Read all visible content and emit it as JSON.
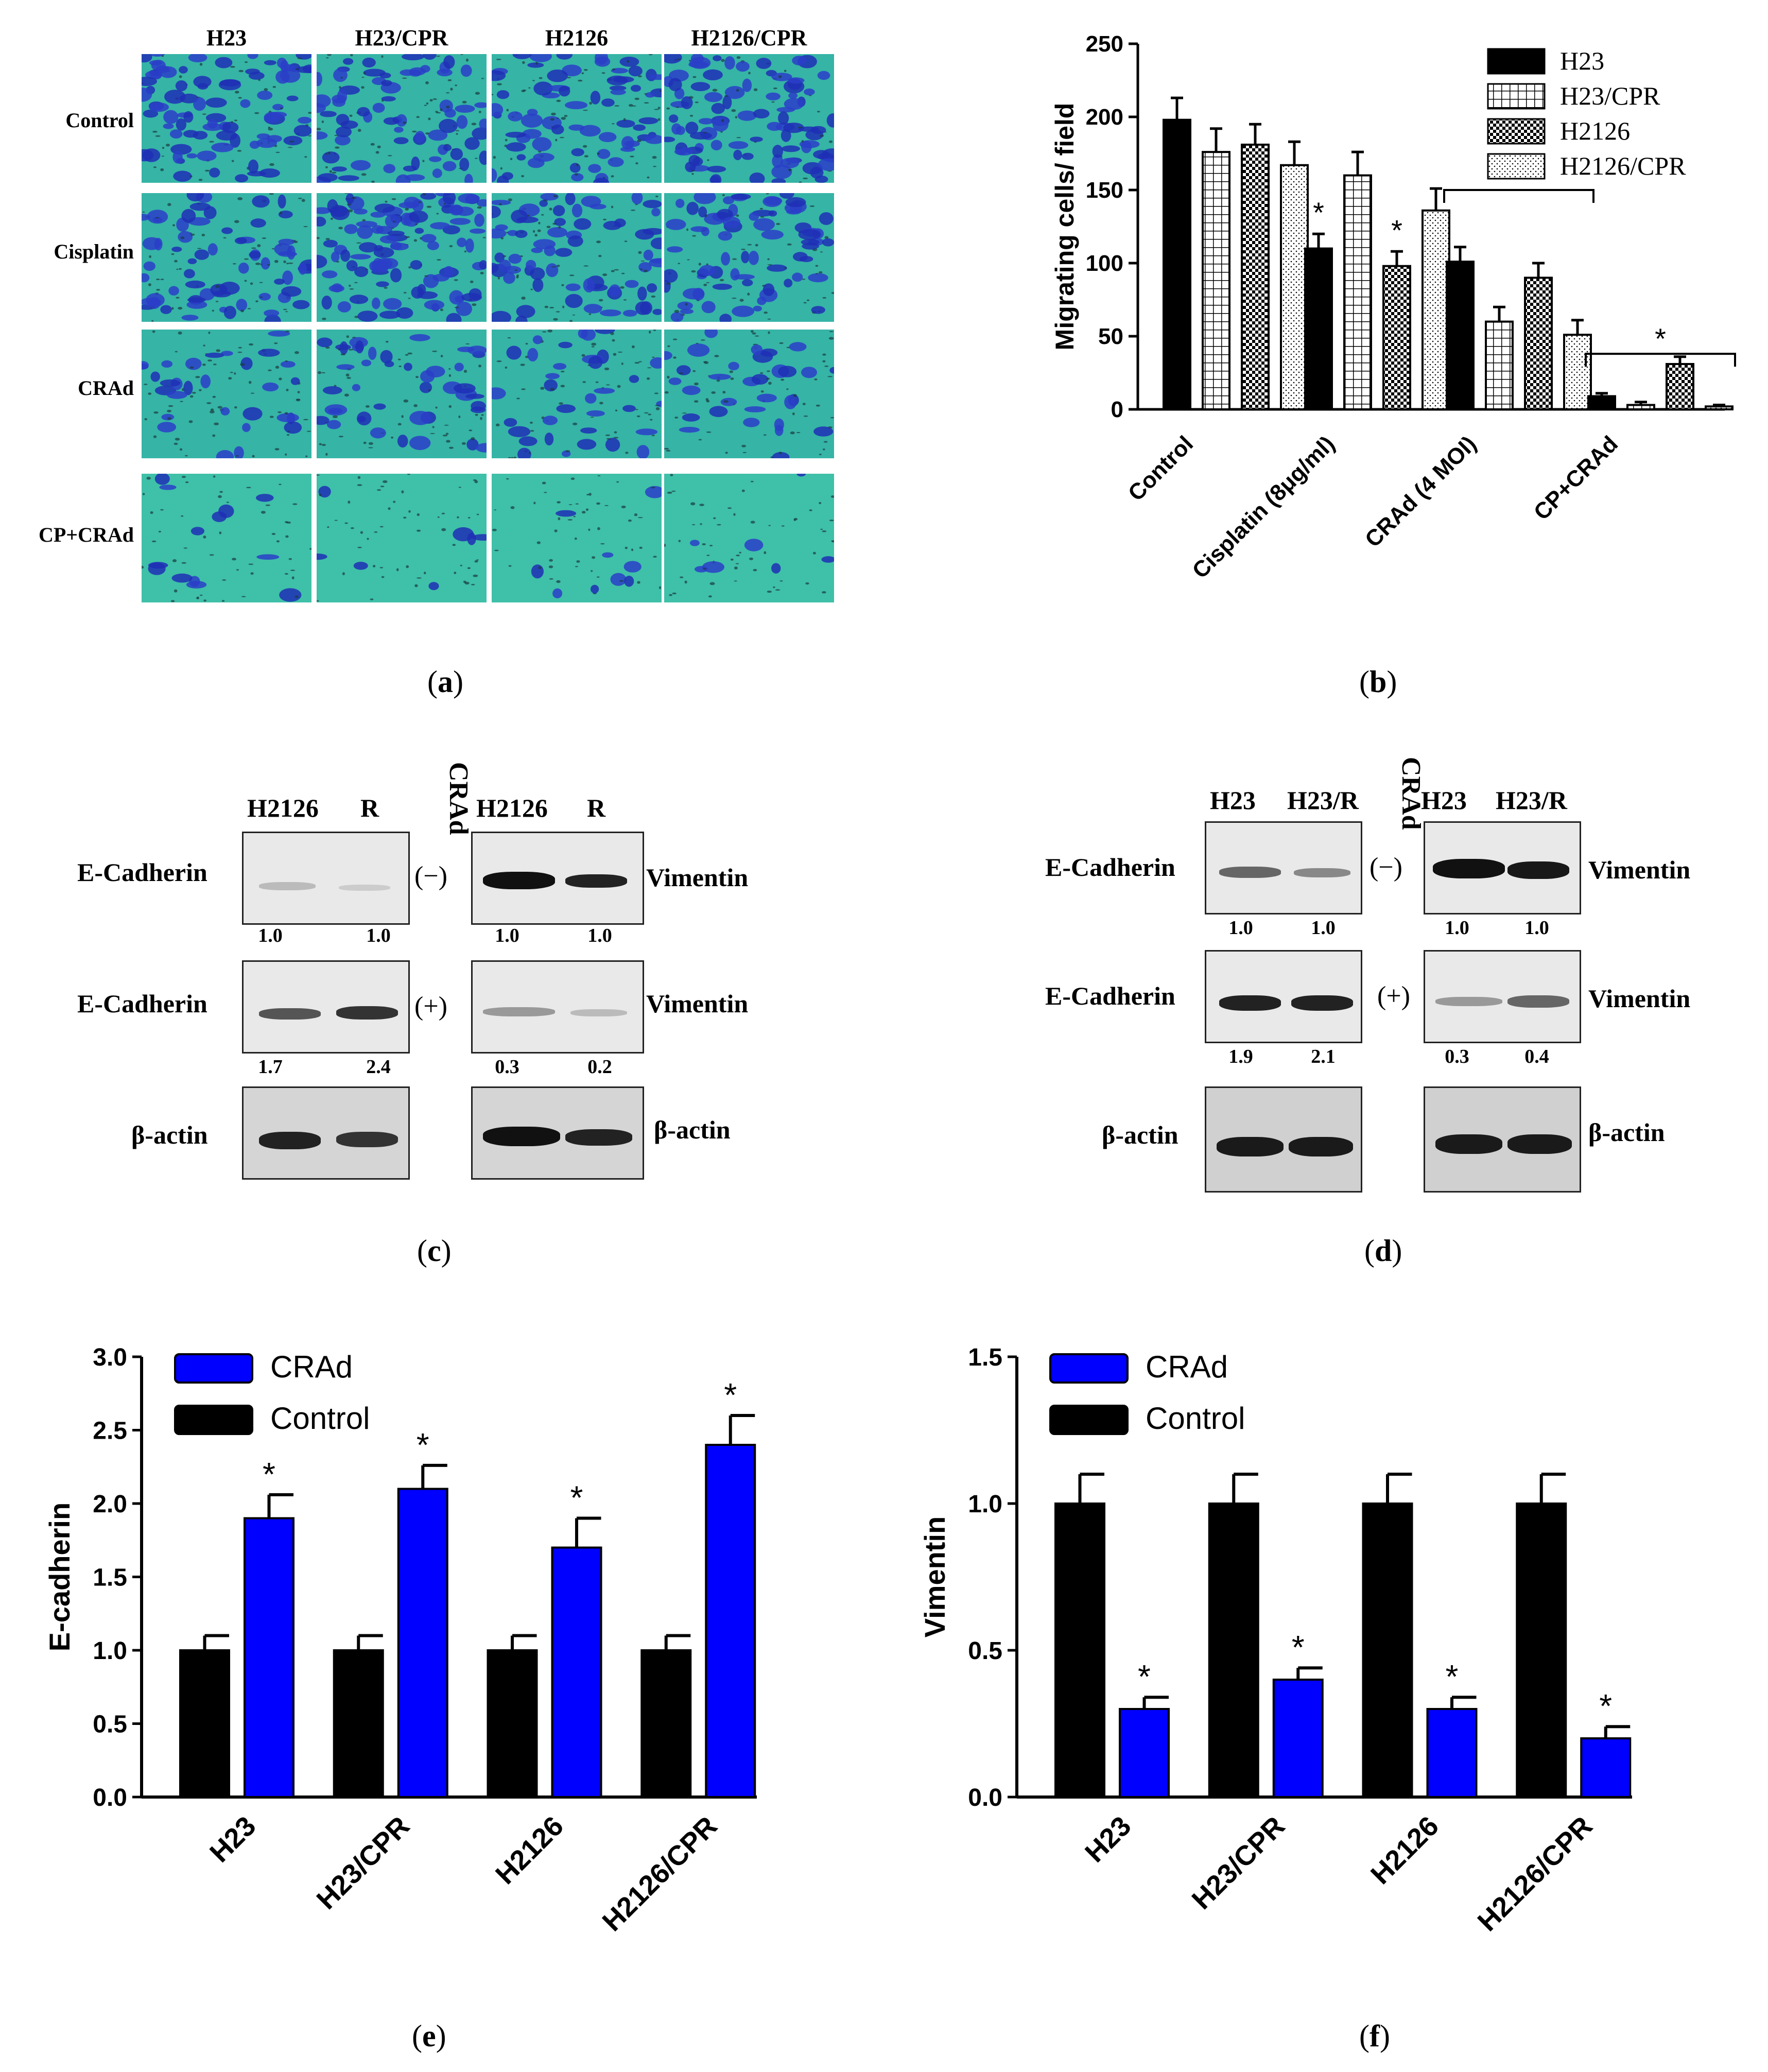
{
  "panel_a": {
    "label": "a",
    "columns": [
      "H23",
      "H23/CPR",
      "H2126",
      "H2126/CPR"
    ],
    "rows": [
      "Control",
      "Cisplatin",
      "CRAd",
      "CP+CRAd"
    ]
  },
  "panel_c": {
    "label": "c",
    "lanes_left": [
      "H2126",
      "R"
    ],
    "lanes_right": [
      "H2126",
      "R"
    ],
    "crad_header": "CRAd",
    "minus": "(−)",
    "plus": "(+)",
    "left_labels": [
      "E-Cadherin",
      "E-Cadherin",
      "β-actin"
    ],
    "right_labels": [
      "Vimentin",
      "Vimentin",
      "β-actin"
    ],
    "q_top_left": [
      "1.0",
      "1.0"
    ],
    "q_top_right": [
      "1.0",
      "1.0"
    ],
    "q_mid_left": [
      "1.7",
      "2.4"
    ],
    "q_mid_right": [
      "0.3",
      "0.2"
    ]
  },
  "panel_d": {
    "label": "d",
    "lanes_left": [
      "H23",
      "H23/R"
    ],
    "lanes_right": [
      "H23",
      "H23/R"
    ],
    "crad_header": "CRAd",
    "minus": "(−)",
    "plus": "(+)",
    "left_labels": [
      "E-Cadherin",
      "E-Cadherin",
      "β-actin"
    ],
    "right_labels": [
      "Vimentin",
      "Vimentin",
      "β-actin"
    ],
    "q_top_left": [
      "1.0",
      "1.0"
    ],
    "q_top_right": [
      "1.0",
      "1.0"
    ],
    "q_mid_left": [
      "1.9",
      "2.1"
    ],
    "q_mid_right": [
      "0.3",
      "0.4"
    ]
  },
  "colors": {
    "black": "#000000",
    "blue": "#0000ff",
    "stain_teal": "#2fb7a6",
    "stain_blue": "#1f2fb5"
  },
  "chart_data": [
    {
      "id": "b",
      "label": "b",
      "type": "bar",
      "title": "",
      "xlabel": "",
      "ylabel": "Migrating cells/ field",
      "ylim": [
        0,
        250
      ],
      "yticks": [
        "0",
        "50",
        "100",
        "150",
        "200",
        "250"
      ],
      "categories": [
        "Control",
        "Cisplatin (8μg/ml)",
        "CRAd (4 MOI)",
        "CP+CRAd"
      ],
      "series": [
        {
          "name": "H23",
          "pattern": "solid",
          "values": [
            198,
            110,
            101,
            9
          ],
          "errors": [
            15,
            10,
            10,
            2
          ]
        },
        {
          "name": "H23/CPR",
          "pattern": "grid",
          "values": [
            176,
            160,
            60,
            3
          ],
          "errors": [
            16,
            16,
            10,
            2
          ]
        },
        {
          "name": "H2126",
          "pattern": "check",
          "values": [
            181,
            98,
            90,
            31
          ],
          "errors": [
            14,
            10,
            10,
            5
          ]
        },
        {
          "name": "H2126/CPR",
          "pattern": "dots",
          "values": [
            167,
            136,
            51,
            2
          ],
          "errors": [
            16,
            15,
            10,
            1
          ]
        }
      ],
      "stars": [
        "*",
        "*",
        "*",
        "*"
      ],
      "legend": "top-right"
    },
    {
      "id": "e",
      "label": "e",
      "type": "bar",
      "title": "",
      "xlabel": "",
      "ylabel": "E-cadherin",
      "ylim": [
        0,
        3.0
      ],
      "yticks": [
        "0.0",
        "0.5",
        "1.0",
        "1.5",
        "2.0",
        "2.5",
        "3.0"
      ],
      "categories": [
        "H23",
        "H23/CPR",
        "H2126",
        "H2126/CPR"
      ],
      "series": [
        {
          "name": "Control",
          "color": "#000000",
          "values": [
            1.0,
            1.0,
            1.0,
            1.0
          ],
          "errors": [
            0.1,
            0.1,
            0.1,
            0.1
          ]
        },
        {
          "name": "CRAd",
          "color": "#0000ff",
          "values": [
            1.9,
            2.1,
            1.7,
            2.4
          ],
          "errors": [
            0.16,
            0.16,
            0.2,
            0.2
          ]
        }
      ],
      "stars": [
        "*",
        "*",
        "*",
        "*"
      ],
      "legend": "top-left"
    },
    {
      "id": "f",
      "label": "f",
      "type": "bar",
      "title": "",
      "xlabel": "",
      "ylabel": "Vimentin",
      "ylim": [
        0,
        1.5
      ],
      "yticks": [
        "0.0",
        "0.5",
        "1.0",
        "1.5"
      ],
      "categories": [
        "H23",
        "H23/CPR",
        "H2126",
        "H2126/CPR"
      ],
      "series": [
        {
          "name": "Control",
          "color": "#000000",
          "values": [
            1.0,
            1.0,
            1.0,
            1.0
          ],
          "errors": [
            0.1,
            0.1,
            0.1,
            0.1
          ]
        },
        {
          "name": "CRAd",
          "color": "#0000ff",
          "values": [
            0.3,
            0.4,
            0.3,
            0.2
          ],
          "errors": [
            0.04,
            0.04,
            0.04,
            0.04
          ]
        }
      ],
      "stars": [
        "*",
        "*",
        "*",
        "*"
      ],
      "legend": "top-left"
    }
  ]
}
